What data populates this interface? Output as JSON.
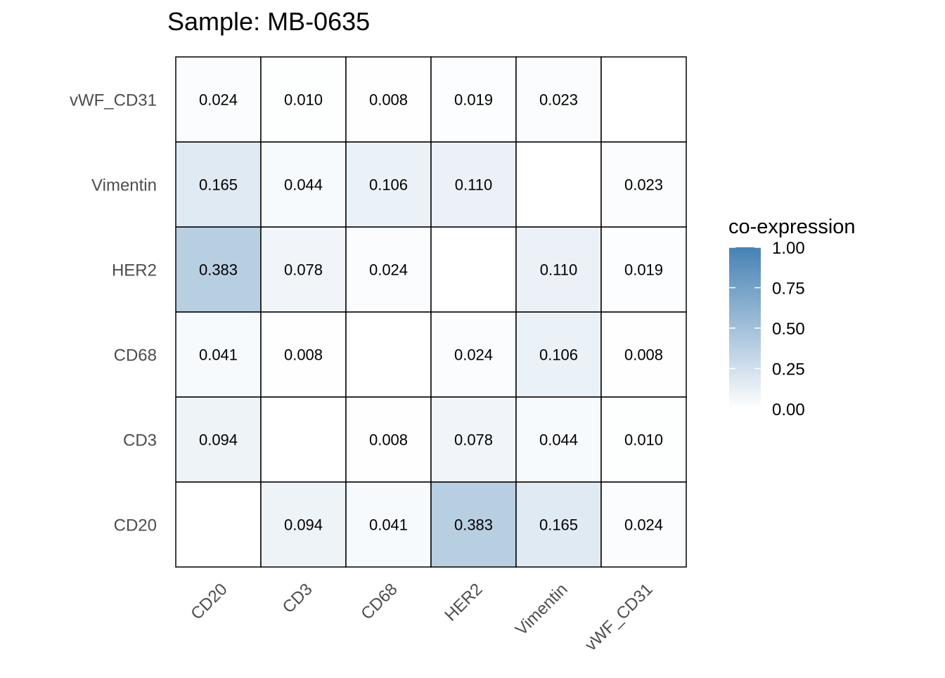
{
  "chart_data": {
    "type": "heatmap",
    "title": "Sample: MB-0635",
    "xlabel": "",
    "ylabel": "",
    "x_categories": [
      "CD20",
      "CD3",
      "CD68",
      "HER2",
      "Vimentin",
      "vWF_CD31"
    ],
    "y_categories": [
      "CD20",
      "CD3",
      "CD68",
      "HER2",
      "Vimentin",
      "vWF_CD31"
    ],
    "values": [
      [
        null,
        0.094,
        0.041,
        0.383,
        0.165,
        0.024
      ],
      [
        0.094,
        null,
        0.008,
        0.078,
        0.044,
        0.01
      ],
      [
        0.041,
        0.008,
        null,
        0.024,
        0.106,
        0.008
      ],
      [
        0.383,
        0.078,
        0.024,
        null,
        0.11,
        0.019
      ],
      [
        0.165,
        0.044,
        0.106,
        0.11,
        null,
        0.023
      ],
      [
        0.024,
        0.01,
        0.008,
        0.019,
        0.023,
        null
      ]
    ],
    "value_format_decimals": 3,
    "color_scale": {
      "low": "#FFFFFF",
      "high": "#4682B4",
      "limits": [
        0,
        1
      ]
    },
    "legend": {
      "title": "co-expression",
      "ticks": [
        "0.00",
        "0.25",
        "0.50",
        "0.75",
        "1.00"
      ],
      "tick_values": [
        0,
        0.25,
        0.5,
        0.75,
        1
      ],
      "position": "right"
    }
  }
}
